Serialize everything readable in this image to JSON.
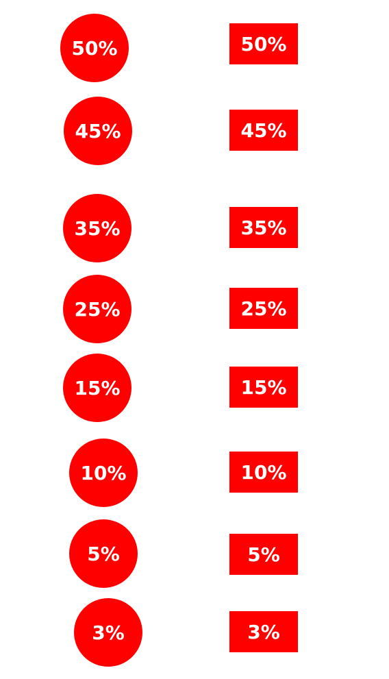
{
  "colors": {
    "badge_background": "#ff0000",
    "badge_text": "#ffffff",
    "page_background": "#ffffff"
  },
  "circle_badges": [
    "50%",
    "45%",
    "35%",
    "25%",
    "15%",
    "10%",
    "5%",
    "3%"
  ],
  "rect_badges": [
    "50%",
    "45%",
    "35%",
    "25%",
    "15%",
    "10%",
    "5%",
    "3%"
  ]
}
